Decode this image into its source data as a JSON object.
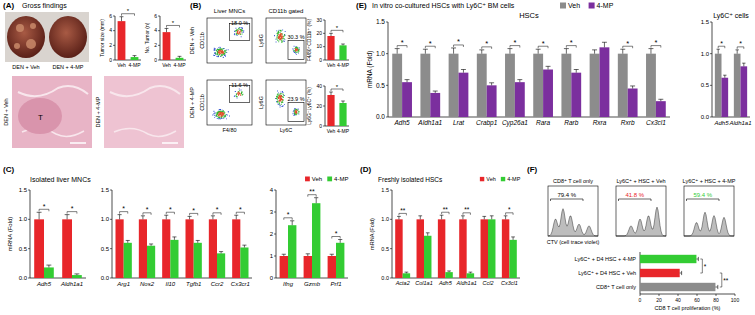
{
  "chart_data": [
    {
      "type": "bar",
      "y_label": "Tumor size (mm)",
      "categories": [
        "Veh",
        "4-MP"
      ],
      "values": [
        5.3,
        0.4
      ],
      "errors": [
        0.6,
        0.2
      ],
      "colors": [
        "#e8262a",
        "#33cc33"
      ],
      "ylim": [
        0,
        6
      ],
      "yticks": [
        0,
        2,
        4,
        6
      ],
      "annotations": [
        "*"
      ]
    },
    {
      "type": "bar",
      "y_label": "No. Tumor (n)",
      "categories": [
        "Veh",
        "4-MP"
      ],
      "values": [
        3.8,
        0.3
      ],
      "errors": [
        0.5,
        0.2
      ],
      "colors": [
        "#e8262a",
        "#33cc33"
      ],
      "ylim": [
        0,
        6
      ],
      "yticks": [
        0,
        2,
        4,
        6
      ],
      "annotations": [
        "*"
      ]
    },
    {
      "type": "bar",
      "y_label": "F4/80⁺CD11b⁺ (%)",
      "categories": [
        "Veh",
        "4-MP"
      ],
      "values": [
        18,
        11
      ],
      "errors": [
        2,
        1
      ],
      "colors": [
        "#e8262a",
        "#33cc33"
      ],
      "ylim": [
        0,
        30
      ],
      "yticks": [
        0,
        10,
        20,
        30
      ],
      "annotations": [
        "*"
      ]
    },
    {
      "type": "bar",
      "y_label": "Ly6G⁻Ly6C⁺ (%)",
      "categories": [
        "Veh",
        "4-MP"
      ],
      "values": [
        31,
        23
      ],
      "errors": [
        3,
        2
      ],
      "colors": [
        "#e8262a",
        "#33cc33"
      ],
      "ylim": [
        0,
        40
      ],
      "yticks": [
        0,
        20,
        40
      ],
      "annotations": [
        "*"
      ]
    },
    {
      "type": "bar",
      "title": "Isolated liver MNCs",
      "y_label": "mRNA (Fold)",
      "categories": [
        "Adh5",
        "Aldh1a1"
      ],
      "series": [
        {
          "color": "#e8262a",
          "values": [
            1,
            1
          ],
          "errors": [
            0.12,
            0.08
          ]
        },
        {
          "color": "#33cc33",
          "values": [
            0.18,
            0.05
          ],
          "errors": [
            0.04,
            0.02
          ]
        }
      ],
      "ylim": [
        0,
        1.5
      ],
      "yticks": [
        {
          "value": 0,
          "label": "0.0"
        },
        {
          "value": 0.5,
          "label": "0.5"
        },
        {
          "value": 1,
          "label": "1.0"
        },
        {
          "value": 1.5,
          "label": "1.5"
        }
      ],
      "annotations": [
        "*",
        "*"
      ]
    },
    {
      "type": "bar",
      "categories": [
        "Arg1",
        "Nos2",
        "Il10",
        "Tgfb1",
        "Ccr2",
        "Cx3cr1"
      ],
      "series": [
        {
          "color": "#e8262a",
          "values": [
            1,
            1,
            1,
            1,
            1,
            1
          ],
          "errors": [
            0.08,
            0.06,
            0.07,
            0.05,
            0.06,
            0.07
          ]
        },
        {
          "color": "#33cc33",
          "values": [
            0.6,
            0.55,
            0.65,
            0.6,
            0.42,
            0.52
          ],
          "errors": [
            0.04,
            0.03,
            0.05,
            0.04,
            0.03,
            0.04
          ]
        }
      ],
      "ylim": [
        0,
        1.5
      ],
      "yticks": [
        {
          "value": 0,
          "label": "0.0"
        },
        {
          "value": 0.5,
          "label": "0.5"
        },
        {
          "value": 1,
          "label": "1.0"
        },
        {
          "value": 1.5,
          "label": "1.5"
        }
      ],
      "annotations": [
        "*",
        "*",
        "*",
        "*",
        "*",
        "*"
      ]
    },
    {
      "type": "bar",
      "categories": [
        "Ifng",
        "Gzmb",
        "Prf1"
      ],
      "series": [
        {
          "name": "Veh",
          "color": "#e8262a",
          "values": [
            1,
            1,
            1
          ],
          "errors": [
            0.08,
            0.1,
            0.08
          ]
        },
        {
          "name": "4-MP",
          "color": "#33cc33",
          "values": [
            2.4,
            3.4,
            1.6
          ],
          "errors": [
            0.2,
            0.25,
            0.15
          ]
        }
      ],
      "ylim": [
        0,
        4
      ],
      "yticks": [
        0,
        1,
        2,
        3,
        4
      ],
      "annotations": [
        "*",
        "**",
        "*"
      ],
      "legend": "top-right"
    },
    {
      "type": "bar",
      "title": "Freshly isolated HSCs",
      "y_label": "mRNA (Fold)",
      "categories": [
        "Acta2",
        "Col1a1",
        "Adh5",
        "Aldh1a1",
        "Ccl2",
        "Cx3cl1"
      ],
      "series": [
        {
          "name": "Veh",
          "color": "#e8262a",
          "values": [
            1,
            1,
            1,
            1,
            1,
            1
          ],
          "errors": [
            0.05,
            0.06,
            0.07,
            0.06,
            0.05,
            0.06
          ]
        },
        {
          "name": "4-MP",
          "color": "#33cc33",
          "values": [
            0.08,
            0.72,
            0.1,
            0.08,
            1,
            0.65
          ],
          "errors": [
            0.02,
            0.05,
            0.02,
            0.02,
            0.06,
            0.05
          ]
        }
      ],
      "ylim": [
        0,
        1.5
      ],
      "yticks": [
        {
          "value": 0,
          "label": "0.0"
        },
        {
          "value": 0.5,
          "label": "0.5"
        },
        {
          "value": 1,
          "label": "1.0"
        },
        {
          "value": 1.5,
          "label": "1.5"
        }
      ],
      "annotations": [
        "**",
        null,
        "**",
        "**",
        null,
        "*"
      ],
      "legend": "top-right"
    },
    {
      "type": "bar",
      "title": "HSCs",
      "y_label": "mRNA (Fold)",
      "categories": [
        "Adh5",
        "Aldh1a1",
        "Lrat",
        "Crabp1",
        "Cyp26a1",
        "Rara",
        "Rarb",
        "Rxra",
        "Rxrb",
        "Cx3cl1"
      ],
      "series": [
        {
          "name": "Veh",
          "color": "#8c8c8c",
          "values": [
            1,
            1,
            1,
            1,
            1,
            1,
            1,
            1,
            1,
            1
          ],
          "errors": [
            0.08,
            0.07,
            0.09,
            0.06,
            0.08,
            0.07,
            0.08,
            0.06,
            0.07,
            0.08
          ]
        },
        {
          "name": "4-MP",
          "color": "#7b2f9e",
          "values": [
            0.55,
            0.38,
            0.7,
            0.5,
            0.55,
            0.75,
            0.7,
            1.1,
            0.45,
            0.25
          ],
          "errors": [
            0.04,
            0.03,
            0.05,
            0.04,
            0.04,
            0.05,
            0.05,
            0.08,
            0.04,
            0.03
          ]
        }
      ],
      "ylim": [
        0,
        1.5
      ],
      "yticks": [
        {
          "value": 0,
          "label": "0.0"
        },
        {
          "value": 0.5,
          "label": "0.5"
        },
        {
          "value": 1,
          "label": "1.0"
        },
        {
          "value": 1.5,
          "label": "1.5"
        }
      ],
      "annotations": [
        "*",
        "*",
        "*",
        "*",
        "*",
        "*",
        "*",
        null,
        "*",
        "*"
      ],
      "legend": "top"
    },
    {
      "type": "bar",
      "title": "Ly6C⁺ cells",
      "categories": [
        "Adh5",
        "Aldh1a1"
      ],
      "series": [
        {
          "color": "#8c8c8c",
          "values": [
            1,
            1
          ],
          "errors": [
            0.07,
            0.06
          ]
        },
        {
          "color": "#7b2f9e",
          "values": [
            0.62,
            0.8
          ],
          "errors": [
            0.04,
            0.05
          ]
        }
      ],
      "ylim": [
        0,
        1.5
      ],
      "yticks": [
        {
          "value": 0,
          "label": "0.0"
        },
        {
          "value": 0.5,
          "label": "0.5"
        },
        {
          "value": 1,
          "label": "1.0"
        },
        {
          "value": 1.5,
          "label": "1.5"
        }
      ],
      "annotations": [
        "*",
        "*"
      ]
    },
    {
      "type": "bar",
      "orientation": "horizontal",
      "x_label": "CD8 T cell proliferation (%)",
      "categories": [
        "Ly6C⁺ + D4 HSC + 4-MP",
        "Ly6C⁺ + D4 HSC + Veh",
        "CD8⁺ T cell only"
      ],
      "values": [
        59.4,
        41.8,
        79.4
      ],
      "errors": [
        2,
        2,
        2.5
      ],
      "colors": [
        "#33cc33",
        "#e8262a",
        "#8c8c8c"
      ],
      "xlim": [
        0,
        100
      ],
      "xticks": [
        0,
        20,
        40,
        60,
        80,
        100
      ],
      "annotations": [
        "*",
        "**"
      ]
    }
  ],
  "figure": {
    "panel_labels": [
      "(A)",
      "(B)",
      "(C)",
      "(D)",
      "(E)",
      "(F)"
    ],
    "a": {
      "title": "Gross findings",
      "photo_labels": [
        "DEN + Veh",
        "DEN + 4-MP"
      ],
      "histology_labels": [
        "DEN + Veh",
        "DEN + 4-MP"
      ],
      "tumor_mark": "T"
    },
    "b": {
      "column_titles": [
        "Liver MNCs",
        "CD11b gated"
      ],
      "row_labels": [
        "DEN + Veh",
        "DEN + 4-MP"
      ],
      "x_labels": [
        "F4/80",
        "Ly6C"
      ],
      "y_labels": [
        "CD11b",
        "Ly6G"
      ],
      "gates": [
        [
          "18.0 %",
          "30.3 %"
        ],
        [
          "11.6 %",
          "23.9 %"
        ]
      ]
    },
    "e": {
      "title": "In vitro co-cultured HSCs with Ly6C⁺ BM cells"
    },
    "f": {
      "histogram_titles": [
        "CD8⁺ T cell only",
        "Ly6C⁺ + HSC + Veh",
        "Ly6C⁺ + HSC + 4-MP"
      ],
      "gates": [
        "79.4 %",
        "41.8 %",
        "59.4 %"
      ],
      "gate_colors": [
        "#000000",
        "#e8262a",
        "#33cc33"
      ],
      "x_label": "CTV (cell trace violet)"
    }
  }
}
